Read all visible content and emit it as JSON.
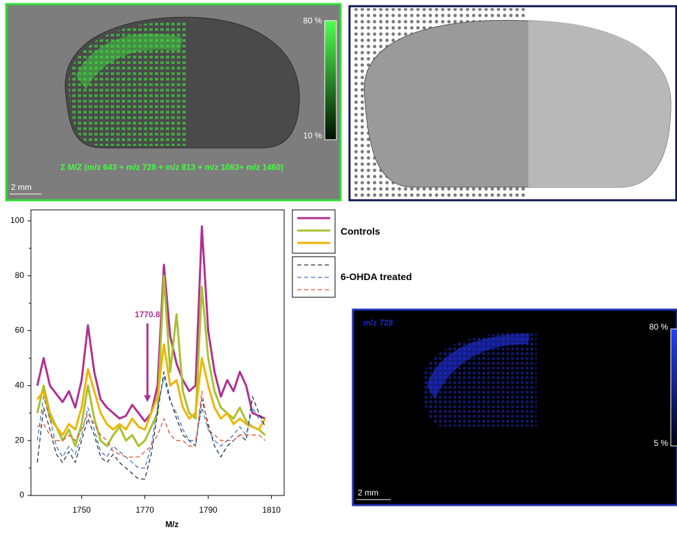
{
  "chart_data": {
    "type": "line",
    "xlabel": "M/z",
    "x": [
      1736,
      1738,
      1740,
      1742,
      1744,
      1746,
      1748,
      1750,
      1752,
      1754,
      1756,
      1758,
      1760,
      1762,
      1764,
      1766,
      1768,
      1770,
      1772,
      1774,
      1776,
      1778,
      1780,
      1782,
      1784,
      1786,
      1788,
      1790,
      1792,
      1794,
      1796,
      1798,
      1800,
      1802,
      1804,
      1806,
      1808
    ],
    "xlim": [
      1734,
      1814
    ],
    "xticks": [
      1750,
      1770,
      1790,
      1810
    ],
    "ylim": [
      0,
      104
    ],
    "yticks": [
      0,
      20,
      40,
      60,
      80,
      100
    ],
    "series_groups": [
      {
        "name": "Controls",
        "dashed": false,
        "series": [
          {
            "color": "#b0308e",
            "values": [
              40,
              50,
              40,
              37,
              34,
              38,
              32,
              42,
              62,
              45,
              35,
              32,
              30,
              28,
              29,
              33,
              30,
              27,
              30,
              40,
              84,
              58,
              48,
              42,
              38,
              40,
              98,
              60,
              45,
              36,
              42,
              38,
              45,
              40,
              30,
              29,
              28
            ]
          },
          {
            "color": "#a8c030",
            "values": [
              30,
              40,
              30,
              25,
              20,
              24,
              18,
              26,
              40,
              28,
              20,
              18,
              22,
              25,
              20,
              22,
              18,
              20,
              25,
              30,
              80,
              45,
              66,
              38,
              30,
              28,
              76,
              50,
              38,
              32,
              30,
              28,
              32,
              27,
              25,
              24,
              22
            ]
          },
          {
            "color": "#f0b400",
            "values": [
              35,
              38,
              28,
              25,
              22,
              26,
              24,
              32,
              46,
              38,
              30,
              26,
              24,
              26,
              24,
              28,
              25,
              24,
              30,
              36,
              55,
              40,
              42,
              32,
              28,
              30,
              50,
              40,
              32,
              28,
              30,
              26,
              28,
              26,
              25,
              24,
              28
            ]
          }
        ]
      },
      {
        "name": "6-OHDA treated",
        "dashed": true,
        "series": [
          {
            "color": "#203040",
            "values": [
              12,
              32,
              24,
              15,
              12,
              16,
              12,
              20,
              28,
              22,
              14,
              12,
              15,
              12,
              10,
              8,
              6,
              6,
              15,
              30,
              45,
              35,
              28,
              22,
              20,
              18,
              35,
              26,
              18,
              14,
              18,
              20,
              22,
              20,
              36,
              30,
              25
            ]
          },
          {
            "color": "#4070c0",
            "values": [
              20,
              36,
              28,
              18,
              14,
              18,
              15,
              22,
              32,
              24,
              16,
              14,
              18,
              16,
              14,
              12,
              10,
              10,
              18,
              32,
              43,
              34,
              30,
              24,
              20,
              20,
              32,
              24,
              20,
              18,
              20,
              22,
              25,
              22,
              32,
              28,
              26
            ]
          },
          {
            "color": "#e05030",
            "values": [
              25,
              26,
              22,
              20,
              20,
              22,
              20,
              24,
              30,
              26,
              22,
              20,
              16,
              15,
              14,
              14,
              14,
              16,
              18,
              22,
              28,
              22,
              20,
              20,
              18,
              18,
              38,
              24,
              22,
              20,
              20,
              20,
              22,
              22,
              22,
              22,
              20
            ]
          }
        ]
      }
    ],
    "annotation": {
      "x": 1770.8,
      "label": "1770.8",
      "y": 34,
      "color": "#b0308e"
    }
  },
  "panels": {
    "overlay": {
      "caption": "Σ M/Z (m/z 643 + m/z 728 + m/z 813 + m/z 1083+ m/z 1460)",
      "scale_max": "80 %",
      "scale_min": "10 %",
      "scale_bar": "2 mm"
    },
    "ion_image": {
      "label": "m/z 728",
      "scale_max": "80 %",
      "scale_min": "5 %",
      "scale_bar": "2 mm"
    }
  }
}
